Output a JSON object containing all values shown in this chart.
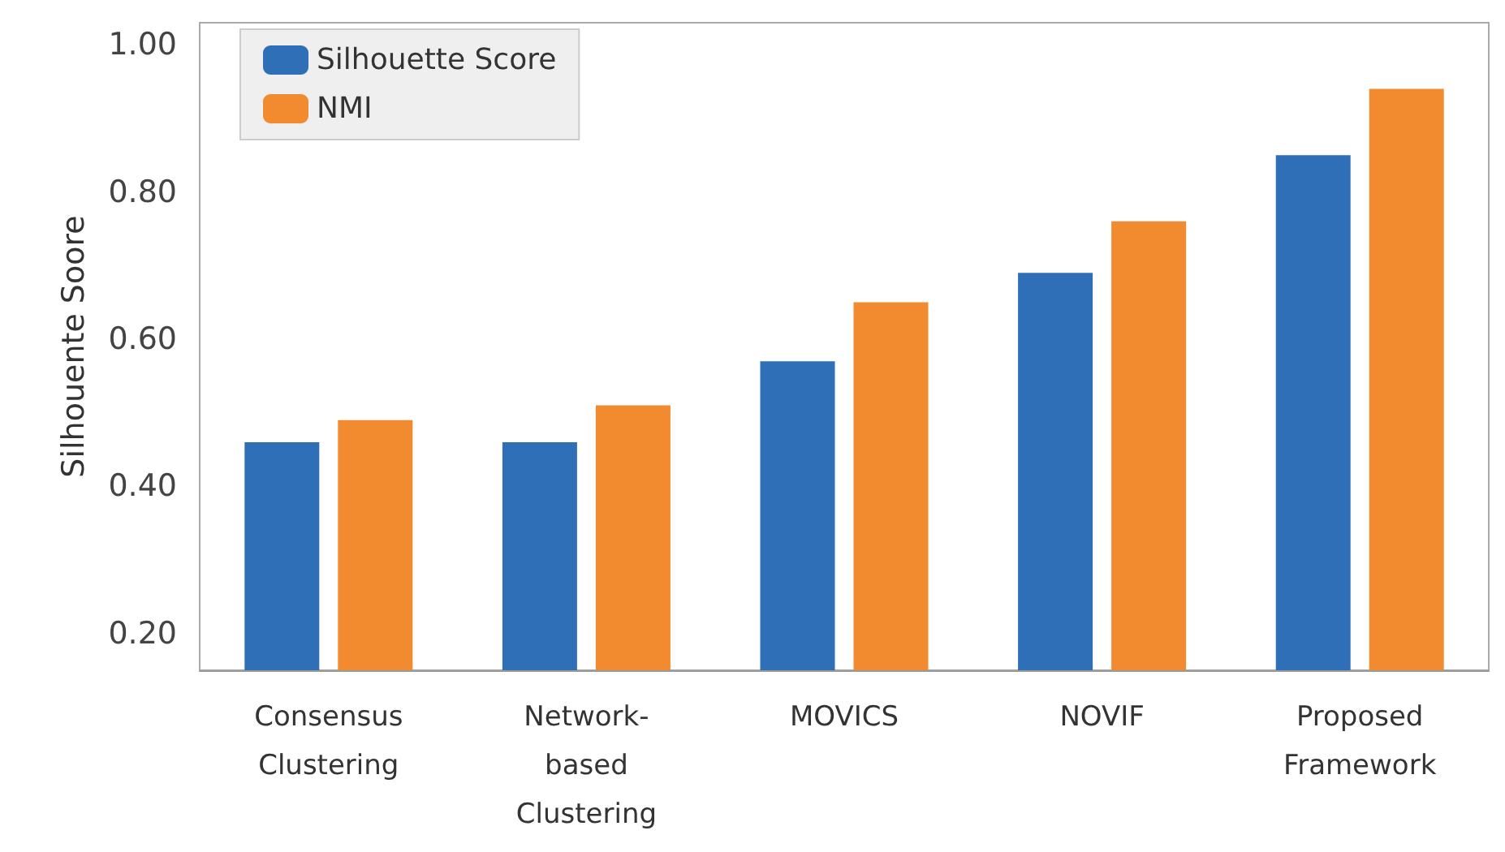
{
  "chart_data": {
    "type": "bar",
    "ylabel": "Silhouente Soore",
    "categories": [
      "Consensus Clustering",
      "Network-based Clustering",
      "MOVICS",
      "NOVIF",
      "Proposed Framework"
    ],
    "series": [
      {
        "name": "Silhouette Score",
        "color": "#2f6fb8",
        "values": [
          0.46,
          0.46,
          0.57,
          0.69,
          0.85
        ]
      },
      {
        "name": "NMI",
        "color": "#f28a30",
        "values": [
          0.49,
          0.51,
          0.65,
          0.76,
          0.94
        ]
      }
    ],
    "ylim": [
      0.15,
      1.03
    ],
    "yticks": [
      {
        "value": 0.2,
        "label": "0.20"
      },
      {
        "value": 0.4,
        "label": "0.40"
      },
      {
        "value": 0.6,
        "label": "0.60"
      },
      {
        "value": 0.8,
        "label": "0.80"
      },
      {
        "value": 1.0,
        "label": "1.00"
      }
    ],
    "grid": false,
    "legend": "top left"
  }
}
